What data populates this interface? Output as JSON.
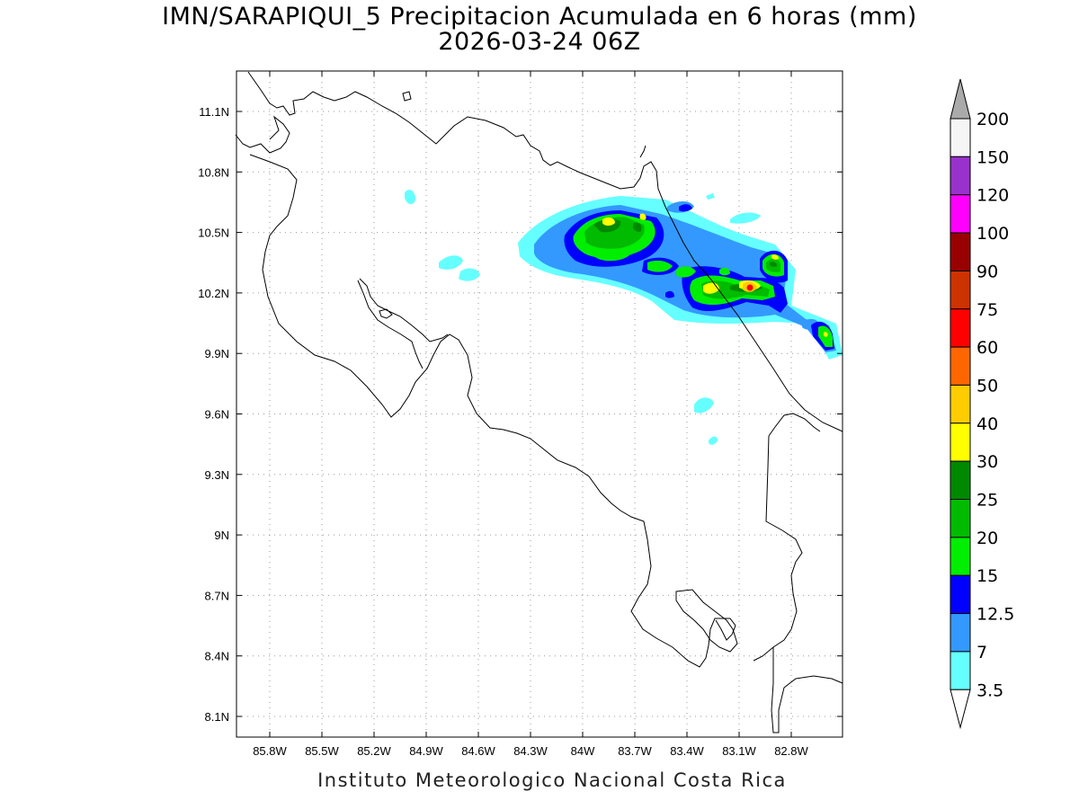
{
  "title": {
    "line1": "IMN/SARAPIQUI_5 Precipitacion Acumulada en 6 horas (mm)",
    "line2": "2026-03-24 06Z"
  },
  "footer": "Instituto Meteorologico Nacional Costa Rica",
  "axes": {
    "lon_labels": [
      "85.8W",
      "85.5W",
      "85.2W",
      "84.9W",
      "84.6W",
      "84.3W",
      "84W",
      "83.7W",
      "83.4W",
      "83.1W",
      "82.8W"
    ],
    "lat_labels": [
      "11.1N",
      "10.8N",
      "10.5N",
      "10.2N",
      "9.9N",
      "9.6N",
      "9.3N",
      "9N",
      "8.7N",
      "8.4N",
      "8.1N"
    ]
  },
  "colorbar": {
    "levels": [
      "200",
      "150",
      "120",
      "100",
      "90",
      "75",
      "60",
      "50",
      "40",
      "30",
      "25",
      "20",
      "15",
      "12.5",
      "7",
      "3.5"
    ],
    "colors": [
      "#f5f5f5",
      "#9932cc",
      "#ff00ff",
      "#990000",
      "#cc3300",
      "#ff0000",
      "#ff6600",
      "#ffcc00",
      "#ffff00",
      "#008800",
      "#00bb00",
      "#00ee00",
      "#0000ff",
      "#3399ff",
      "#66ffff"
    ]
  },
  "precipitation_colors": {
    "c3_5": "#66ffff",
    "c7": "#3399ff",
    "c12_5": "#0000ff",
    "c15": "#00ee00",
    "c20": "#00bb00",
    "c25": "#008800",
    "c30": "#ffff00",
    "c40": "#ffcc00",
    "c60": "#ff0000"
  }
}
